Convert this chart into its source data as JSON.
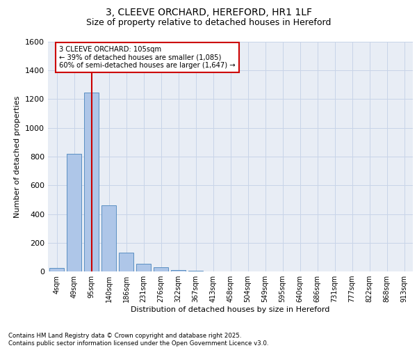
{
  "title_line1": "3, CLEEVE ORCHARD, HEREFORD, HR1 1LF",
  "title_line2": "Size of property relative to detached houses in Hereford",
  "xlabel": "Distribution of detached houses by size in Hereford",
  "ylabel": "Number of detached properties",
  "bar_labels": [
    "4sqm",
    "49sqm",
    "95sqm",
    "140sqm",
    "186sqm",
    "231sqm",
    "276sqm",
    "322sqm",
    "367sqm",
    "413sqm",
    "458sqm",
    "504sqm",
    "549sqm",
    "595sqm",
    "640sqm",
    "686sqm",
    "731sqm",
    "777sqm",
    "822sqm",
    "868sqm",
    "913sqm"
  ],
  "bar_values": [
    25,
    820,
    1245,
    460,
    130,
    55,
    28,
    12,
    5,
    0,
    0,
    0,
    0,
    0,
    0,
    0,
    0,
    0,
    0,
    0,
    0
  ],
  "bar_color": "#aec6e8",
  "bar_edge_color": "#5a8fc2",
  "vline_x_index": 2,
  "property_line_label": "3 CLEEVE ORCHARD: 105sqm",
  "annotation_line1": "← 39% of detached houses are smaller (1,085)",
  "annotation_line2": "60% of semi-detached houses are larger (1,647) →",
  "vline_color": "#cc0000",
  "ylim": [
    0,
    1600
  ],
  "yticks": [
    0,
    200,
    400,
    600,
    800,
    1000,
    1200,
    1400,
    1600
  ],
  "grid_color": "#c8d4e8",
  "bg_color": "#e8edf5",
  "footnote1": "Contains HM Land Registry data © Crown copyright and database right 2025.",
  "footnote2": "Contains public sector information licensed under the Open Government Licence v3.0."
}
